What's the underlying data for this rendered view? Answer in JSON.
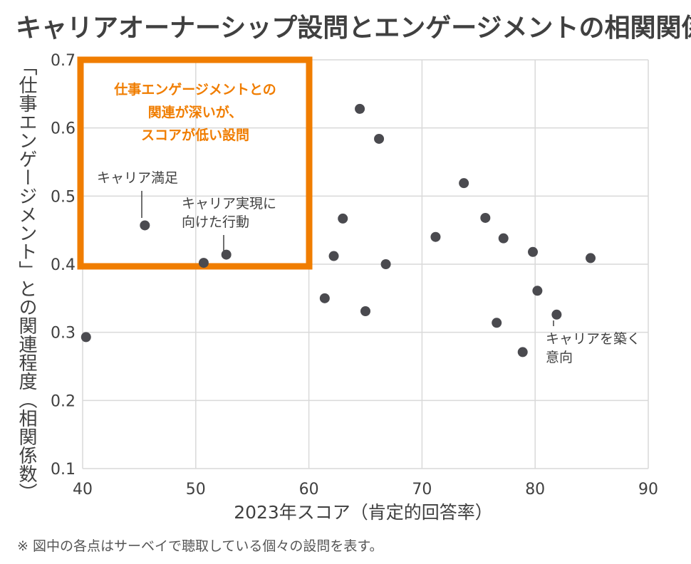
{
  "title": "キャリアオーナーシップ設問とエンゲージメントの相関関係",
  "note": "※ 図中の各点はサーベイで聴取している個々の設問を表す。",
  "colors": {
    "accent": "#f07d00",
    "points": "#4a4a4f",
    "grid": "#d9d9d9"
  },
  "callout": {
    "lines": [
      "仕事エンゲージメントとの",
      "関連が深いが、",
      "スコアが低い設問"
    ]
  },
  "chart_data": {
    "type": "scatter",
    "xlabel": "2023年スコア（肯定的回答率）",
    "ylabel": "「仕事エンゲージメント」との関連程度（相関係数）",
    "xlim": [
      40,
      90
    ],
    "ylim": [
      0.1,
      0.7
    ],
    "xticks": [
      "40",
      "50",
      "60",
      "70",
      "80",
      "90"
    ],
    "yticks": [
      "0.1",
      "0.2",
      "0.3",
      "0.4",
      "0.5",
      "0.6",
      "0.7"
    ],
    "grid": true,
    "points": [
      {
        "x": 40.3,
        "y": 0.293
      },
      {
        "x": 45.5,
        "y": 0.457
      },
      {
        "x": 50.7,
        "y": 0.402
      },
      {
        "x": 52.7,
        "y": 0.414
      },
      {
        "x": 61.4,
        "y": 0.35
      },
      {
        "x": 62.2,
        "y": 0.412
      },
      {
        "x": 63.0,
        "y": 0.467
      },
      {
        "x": 64.5,
        "y": 0.628
      },
      {
        "x": 65.0,
        "y": 0.331
      },
      {
        "x": 66.2,
        "y": 0.584
      },
      {
        "x": 66.8,
        "y": 0.4
      },
      {
        "x": 71.2,
        "y": 0.44
      },
      {
        "x": 73.7,
        "y": 0.519
      },
      {
        "x": 75.6,
        "y": 0.468
      },
      {
        "x": 76.6,
        "y": 0.314
      },
      {
        "x": 77.2,
        "y": 0.438
      },
      {
        "x": 78.9,
        "y": 0.271
      },
      {
        "x": 79.8,
        "y": 0.418
      },
      {
        "x": 80.2,
        "y": 0.361
      },
      {
        "x": 81.9,
        "y": 0.326
      },
      {
        "x": 84.9,
        "y": 0.409
      }
    ],
    "annotations": [
      {
        "lines": [
          "キャリア満足"
        ],
        "point_index": 1
      },
      {
        "lines": [
          "キャリア実現に",
          "向けた行動"
        ],
        "point_index": 3
      },
      {
        "lines": [
          "キャリアを築く",
          "意向"
        ],
        "point_index": 19
      }
    ]
  }
}
